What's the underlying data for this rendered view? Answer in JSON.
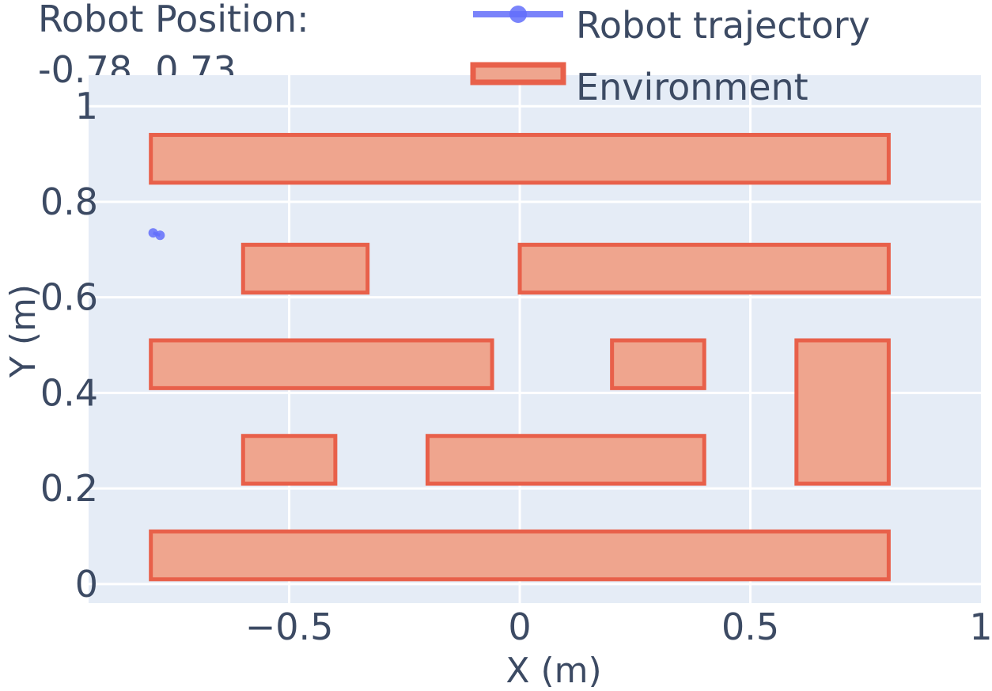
{
  "chart_data": {
    "type": "scatter",
    "title": "Robot Position:",
    "subtitle": "-0.78, 0.73",
    "xlabel": "X (m)",
    "ylabel": "Y (m)",
    "xlim": [
      -0.935,
      1.0
    ],
    "ylim": [
      -0.04,
      1.065
    ],
    "xticks": [
      -0.5,
      0,
      0.5,
      1
    ],
    "xtick_labels": [
      "−0.5",
      "0",
      "0.5",
      "1"
    ],
    "yticks": [
      0,
      0.2,
      0.4,
      0.6,
      0.8,
      1
    ],
    "ytick_labels": [
      "0",
      "0.2",
      "0.4",
      "0.6",
      "0.8",
      "1"
    ],
    "grid": true,
    "legend_position": "top-right",
    "colors": {
      "plot_bg": "#e5ecf6",
      "grid": "#ffffff",
      "trajectory": "#636efa",
      "env_fill": "#efa58e",
      "env_line": "#e8604a",
      "text": "#3c4a63"
    },
    "series": [
      {
        "name": "Robot trajectory",
        "kind": "line+markers",
        "x": [
          -0.795,
          -0.78
        ],
        "y": [
          0.735,
          0.73
        ]
      },
      {
        "name": "Environment",
        "kind": "rectangles",
        "rects": [
          {
            "x0": -0.8,
            "x1": 0.8,
            "y0": 0.84,
            "y1": 0.94
          },
          {
            "x0": -0.6,
            "x1": -0.33,
            "y0": 0.61,
            "y1": 0.71
          },
          {
            "x0": 0.0,
            "x1": 0.8,
            "y0": 0.61,
            "y1": 0.71
          },
          {
            "x0": -0.8,
            "x1": -0.06,
            "y0": 0.41,
            "y1": 0.51
          },
          {
            "x0": 0.2,
            "x1": 0.4,
            "y0": 0.41,
            "y1": 0.51
          },
          {
            "x0": 0.6,
            "x1": 0.8,
            "y0": 0.21,
            "y1": 0.51
          },
          {
            "x0": -0.6,
            "x1": -0.4,
            "y0": 0.21,
            "y1": 0.31
          },
          {
            "x0": -0.2,
            "x1": 0.4,
            "y0": 0.21,
            "y1": 0.31
          },
          {
            "x0": -0.8,
            "x1": 0.8,
            "y0": 0.01,
            "y1": 0.11
          }
        ]
      }
    ]
  }
}
